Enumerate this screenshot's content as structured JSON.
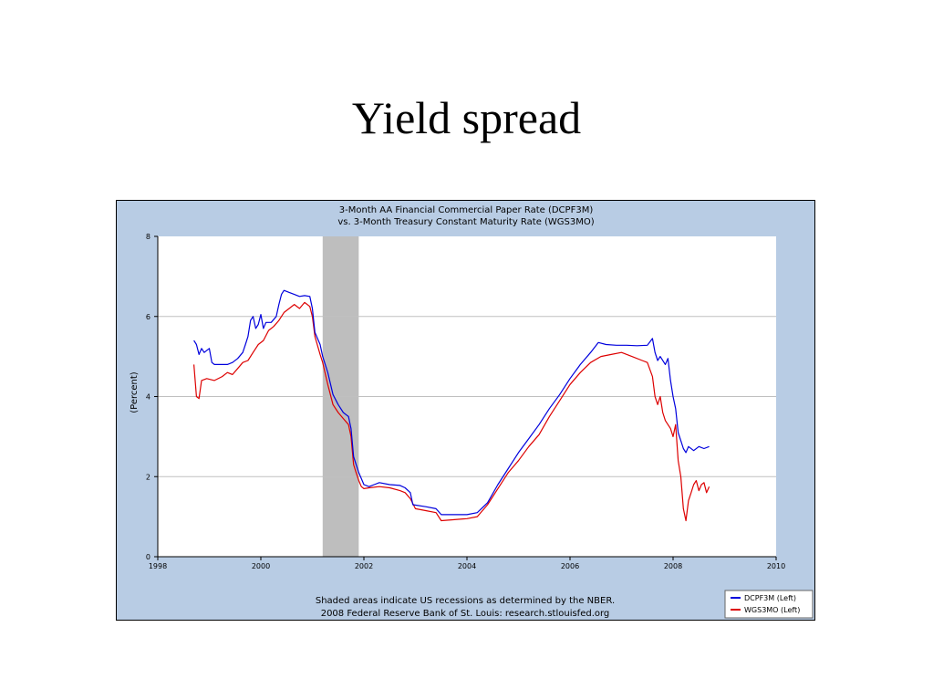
{
  "slide": {
    "title": "Yield spread"
  },
  "chart_data": {
    "type": "line",
    "title": "3-Month AA Financial Commercial Paper Rate (DCPF3M)",
    "subtitle": "vs.  3-Month Treasury Constant Maturity Rate (WGS3MO)",
    "ylabel": "(Percent)",
    "xlabel": "",
    "xlim": [
      1998,
      2010
    ],
    "ylim": [
      0,
      8
    ],
    "xticks": [
      "1998",
      "2000",
      "2002",
      "2004",
      "2006",
      "2008",
      "2010"
    ],
    "yticks": [
      "0",
      "2",
      "4",
      "6",
      "8"
    ],
    "grid": true,
    "legend_position": "bottom-right",
    "recession": {
      "start": 2001.2,
      "end": 2001.9
    },
    "footnote_1": "Shaded areas indicate US recessions as determined by the NBER.",
    "footnote_2": "2008 Federal Reserve Bank of St. Louis: research.stlouisfed.org",
    "colors": {
      "panel": "#b8cce4",
      "plot": "#ffffff",
      "recession": "#bebebe",
      "grid": "#c0c0c0"
    },
    "series": [
      {
        "name": "DCPF3M (Left)",
        "color": "#0000dd",
        "points": [
          [
            1998.7,
            5.4
          ],
          [
            1998.75,
            5.3
          ],
          [
            1998.8,
            5.05
          ],
          [
            1998.85,
            5.2
          ],
          [
            1998.9,
            5.1
          ],
          [
            1999.0,
            5.2
          ],
          [
            1999.05,
            4.85
          ],
          [
            1999.1,
            4.8
          ],
          [
            1999.2,
            4.8
          ],
          [
            1999.35,
            4.8
          ],
          [
            1999.45,
            4.85
          ],
          [
            1999.55,
            4.95
          ],
          [
            1999.65,
            5.1
          ],
          [
            1999.7,
            5.3
          ],
          [
            1999.75,
            5.5
          ],
          [
            1999.8,
            5.9
          ],
          [
            1999.85,
            6.0
          ],
          [
            1999.9,
            5.7
          ],
          [
            1999.95,
            5.8
          ],
          [
            2000.0,
            6.05
          ],
          [
            2000.05,
            5.7
          ],
          [
            2000.1,
            5.85
          ],
          [
            2000.2,
            5.85
          ],
          [
            2000.3,
            6.0
          ],
          [
            2000.35,
            6.3
          ],
          [
            2000.4,
            6.55
          ],
          [
            2000.45,
            6.65
          ],
          [
            2000.55,
            6.6
          ],
          [
            2000.65,
            6.55
          ],
          [
            2000.75,
            6.5
          ],
          [
            2000.85,
            6.52
          ],
          [
            2000.95,
            6.5
          ],
          [
            2001.0,
            6.2
          ],
          [
            2001.05,
            5.6
          ],
          [
            2001.15,
            5.3
          ],
          [
            2001.2,
            5.0
          ],
          [
            2001.3,
            4.6
          ],
          [
            2001.4,
            4.05
          ],
          [
            2001.5,
            3.8
          ],
          [
            2001.6,
            3.6
          ],
          [
            2001.7,
            3.5
          ],
          [
            2001.75,
            3.2
          ],
          [
            2001.8,
            2.5
          ],
          [
            2001.85,
            2.3
          ],
          [
            2001.9,
            2.1
          ],
          [
            2001.95,
            1.95
          ],
          [
            2002.0,
            1.8
          ],
          [
            2002.1,
            1.75
          ],
          [
            2002.2,
            1.8
          ],
          [
            2002.3,
            1.85
          ],
          [
            2002.5,
            1.8
          ],
          [
            2002.7,
            1.78
          ],
          [
            2002.8,
            1.72
          ],
          [
            2002.9,
            1.6
          ],
          [
            2002.95,
            1.3
          ],
          [
            2003.2,
            1.25
          ],
          [
            2003.4,
            1.2
          ],
          [
            2003.5,
            1.05
          ],
          [
            2003.6,
            1.05
          ],
          [
            2003.8,
            1.05
          ],
          [
            2004.0,
            1.05
          ],
          [
            2004.2,
            1.1
          ],
          [
            2004.4,
            1.35
          ],
          [
            2004.6,
            1.8
          ],
          [
            2004.8,
            2.2
          ],
          [
            2005.0,
            2.6
          ],
          [
            2005.2,
            2.95
          ],
          [
            2005.4,
            3.3
          ],
          [
            2005.6,
            3.7
          ],
          [
            2005.8,
            4.05
          ],
          [
            2006.0,
            4.45
          ],
          [
            2006.2,
            4.8
          ],
          [
            2006.4,
            5.1
          ],
          [
            2006.55,
            5.35
          ],
          [
            2006.7,
            5.3
          ],
          [
            2006.9,
            5.28
          ],
          [
            2007.1,
            5.28
          ],
          [
            2007.3,
            5.27
          ],
          [
            2007.5,
            5.28
          ],
          [
            2007.6,
            5.45
          ],
          [
            2007.65,
            5.1
          ],
          [
            2007.7,
            4.9
          ],
          [
            2007.75,
            5.0
          ],
          [
            2007.85,
            4.8
          ],
          [
            2007.9,
            4.95
          ],
          [
            2007.95,
            4.4
          ],
          [
            2008.0,
            4.0
          ],
          [
            2008.05,
            3.7
          ],
          [
            2008.1,
            3.1
          ],
          [
            2008.15,
            2.9
          ],
          [
            2008.2,
            2.7
          ],
          [
            2008.25,
            2.6
          ],
          [
            2008.3,
            2.75
          ],
          [
            2008.4,
            2.65
          ],
          [
            2008.5,
            2.75
          ],
          [
            2008.6,
            2.7
          ],
          [
            2008.7,
            2.75
          ]
        ]
      },
      {
        "name": "WGS3MO (Left)",
        "color": "#dd0000",
        "points": [
          [
            1998.7,
            4.8
          ],
          [
            1998.75,
            4.0
          ],
          [
            1998.8,
            3.95
          ],
          [
            1998.85,
            4.4
          ],
          [
            1998.95,
            4.45
          ],
          [
            1999.1,
            4.4
          ],
          [
            1999.25,
            4.5
          ],
          [
            1999.35,
            4.6
          ],
          [
            1999.45,
            4.55
          ],
          [
            1999.55,
            4.7
          ],
          [
            1999.65,
            4.85
          ],
          [
            1999.75,
            4.9
          ],
          [
            1999.85,
            5.1
          ],
          [
            1999.95,
            5.3
          ],
          [
            2000.05,
            5.4
          ],
          [
            2000.15,
            5.65
          ],
          [
            2000.25,
            5.75
          ],
          [
            2000.35,
            5.9
          ],
          [
            2000.45,
            6.1
          ],
          [
            2000.55,
            6.2
          ],
          [
            2000.65,
            6.3
          ],
          [
            2000.75,
            6.2
          ],
          [
            2000.85,
            6.35
          ],
          [
            2000.95,
            6.25
          ],
          [
            2001.0,
            6.0
          ],
          [
            2001.05,
            5.5
          ],
          [
            2001.15,
            5.05
          ],
          [
            2001.2,
            4.85
          ],
          [
            2001.3,
            4.3
          ],
          [
            2001.4,
            3.8
          ],
          [
            2001.5,
            3.6
          ],
          [
            2001.6,
            3.45
          ],
          [
            2001.7,
            3.3
          ],
          [
            2001.75,
            3.0
          ],
          [
            2001.8,
            2.3
          ],
          [
            2001.85,
            2.1
          ],
          [
            2001.9,
            1.9
          ],
          [
            2001.95,
            1.75
          ],
          [
            2002.0,
            1.7
          ],
          [
            2002.1,
            1.72
          ],
          [
            2002.3,
            1.75
          ],
          [
            2002.5,
            1.72
          ],
          [
            2002.7,
            1.65
          ],
          [
            2002.8,
            1.6
          ],
          [
            2002.9,
            1.45
          ],
          [
            2003.0,
            1.2
          ],
          [
            2003.2,
            1.15
          ],
          [
            2003.4,
            1.1
          ],
          [
            2003.5,
            0.9
          ],
          [
            2003.7,
            0.92
          ],
          [
            2004.0,
            0.95
          ],
          [
            2004.2,
            1.0
          ],
          [
            2004.4,
            1.3
          ],
          [
            2004.6,
            1.7
          ],
          [
            2004.8,
            2.1
          ],
          [
            2005.0,
            2.4
          ],
          [
            2005.2,
            2.75
          ],
          [
            2005.4,
            3.05
          ],
          [
            2005.6,
            3.5
          ],
          [
            2005.8,
            3.9
          ],
          [
            2006.0,
            4.3
          ],
          [
            2006.2,
            4.6
          ],
          [
            2006.4,
            4.85
          ],
          [
            2006.6,
            5.0
          ],
          [
            2006.8,
            5.05
          ],
          [
            2007.0,
            5.1
          ],
          [
            2007.2,
            5.0
          ],
          [
            2007.4,
            4.9
          ],
          [
            2007.5,
            4.85
          ],
          [
            2007.6,
            4.5
          ],
          [
            2007.65,
            4.0
          ],
          [
            2007.7,
            3.8
          ],
          [
            2007.75,
            4.0
          ],
          [
            2007.8,
            3.6
          ],
          [
            2007.85,
            3.4
          ],
          [
            2007.95,
            3.2
          ],
          [
            2008.0,
            3.0
          ],
          [
            2008.05,
            3.3
          ],
          [
            2008.1,
            2.4
          ],
          [
            2008.15,
            2.0
          ],
          [
            2008.2,
            1.2
          ],
          [
            2008.25,
            0.9
          ],
          [
            2008.3,
            1.4
          ],
          [
            2008.35,
            1.6
          ],
          [
            2008.4,
            1.8
          ],
          [
            2008.45,
            1.9
          ],
          [
            2008.5,
            1.65
          ],
          [
            2008.55,
            1.8
          ],
          [
            2008.6,
            1.85
          ],
          [
            2008.65,
            1.6
          ],
          [
            2008.7,
            1.75
          ]
        ]
      }
    ]
  }
}
